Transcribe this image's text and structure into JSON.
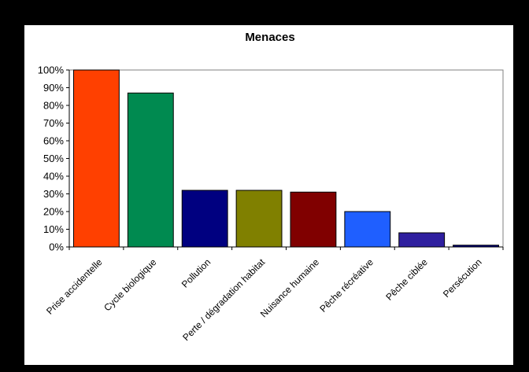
{
  "chart_data": {
    "type": "bar",
    "title": "Menaces",
    "xlabel": "",
    "ylabel": "",
    "ylim": [
      0,
      100
    ],
    "yticks": [
      "0%",
      "10%",
      "20%",
      "30%",
      "40%",
      "50%",
      "60%",
      "70%",
      "80%",
      "90%",
      "100%"
    ],
    "grid": false,
    "legend": "none",
    "categories": [
      "Prise accidentelle",
      "Cycle biologique",
      "Pollution",
      "Perte / dégradation habitat",
      "Nuisance humaine",
      "Pêche récréative",
      "Pêche ciblée",
      "Persécution"
    ],
    "values": [
      100,
      87,
      32,
      32,
      31,
      20,
      8,
      1
    ],
    "colors": [
      "#FF4000",
      "#008A50",
      "#000080",
      "#808000",
      "#800000",
      "#1F5FFF",
      "#2F1F9F",
      "#000080"
    ]
  }
}
